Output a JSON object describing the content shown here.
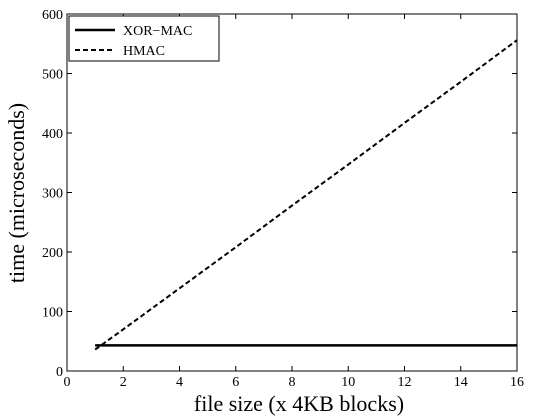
{
  "chart_data": {
    "type": "line",
    "title": "",
    "xlabel": "file size (x 4KB blocks)",
    "ylabel": "time (microseconds)",
    "xlim": [
      0,
      16
    ],
    "ylim": [
      0,
      600
    ],
    "xticks": [
      0,
      2,
      4,
      6,
      8,
      10,
      12,
      14,
      16
    ],
    "yticks": [
      0,
      100,
      200,
      300,
      400,
      500,
      600
    ],
    "grid": false,
    "legend_position": "top-left",
    "series": [
      {
        "name": "XOR−MAC",
        "style": "solid",
        "color": "#000000",
        "x": [
          1,
          2,
          4,
          6,
          8,
          10,
          12,
          14,
          16
        ],
        "y": [
          43,
          43,
          43,
          43,
          43,
          43,
          43,
          43,
          43
        ]
      },
      {
        "name": "HMAC",
        "style": "dashed",
        "color": "#000000",
        "x": [
          1,
          2,
          4,
          6,
          8,
          10,
          12,
          14,
          16
        ],
        "y": [
          36,
          70,
          139,
          208,
          278,
          347,
          417,
          486,
          556
        ]
      }
    ]
  }
}
